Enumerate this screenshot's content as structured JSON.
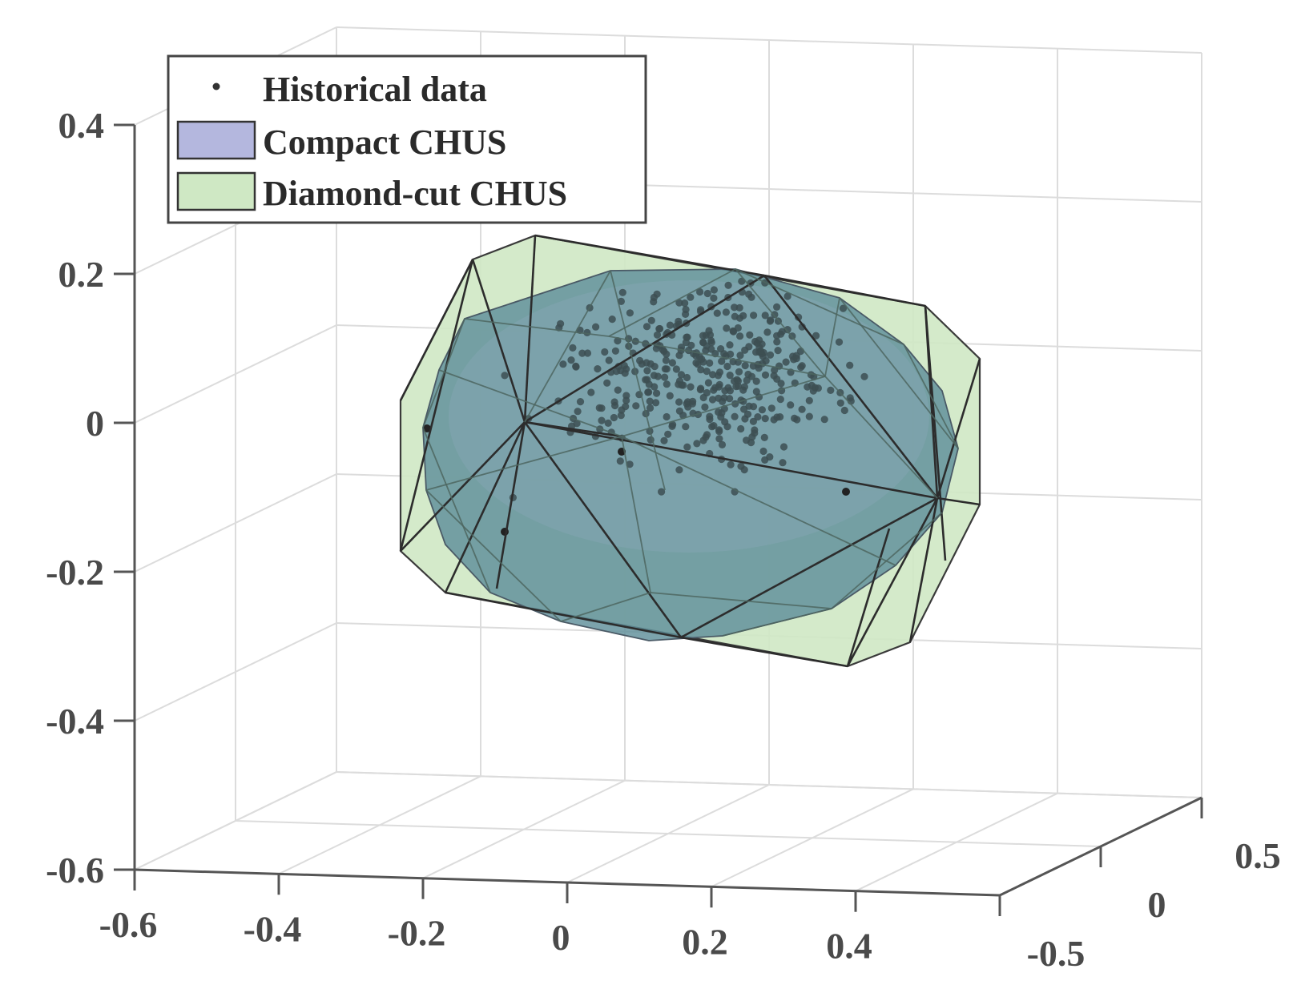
{
  "chart_data": {
    "type": "scatter",
    "view": "3d",
    "title": "",
    "xlabel": "",
    "ylabel": "",
    "zlabel": "",
    "xlim": [
      -0.6,
      0.6
    ],
    "ylim": [
      -0.5,
      0.5
    ],
    "zlim": [
      -0.6,
      0.4
    ],
    "grid": true,
    "legend_position": "top-left",
    "x_ticks": [
      "-0.6",
      "-0.4",
      "-0.2",
      "0",
      "0.2",
      "0.4"
    ],
    "y_ticks": [
      "-0.5",
      "0",
      "0.5"
    ],
    "z_ticks": [
      "-0.6",
      "-0.4",
      "-0.2",
      "0",
      "0.2",
      "0.4"
    ],
    "series": [
      {
        "name": "Historical data",
        "type": "scatter",
        "color": "#333333",
        "point_count": 400,
        "spread": {
          "x": [
            -0.3,
            0.4
          ],
          "y": [
            -0.4,
            0.4
          ],
          "z": [
            -0.2,
            0.25
          ]
        }
      },
      {
        "name": "Compact CHUS",
        "type": "polyhedron",
        "color": "#b4b7de"
      },
      {
        "name": "Diamond-cut CHUS",
        "type": "polyhedron",
        "color": "#cfe8c4"
      }
    ]
  }
}
